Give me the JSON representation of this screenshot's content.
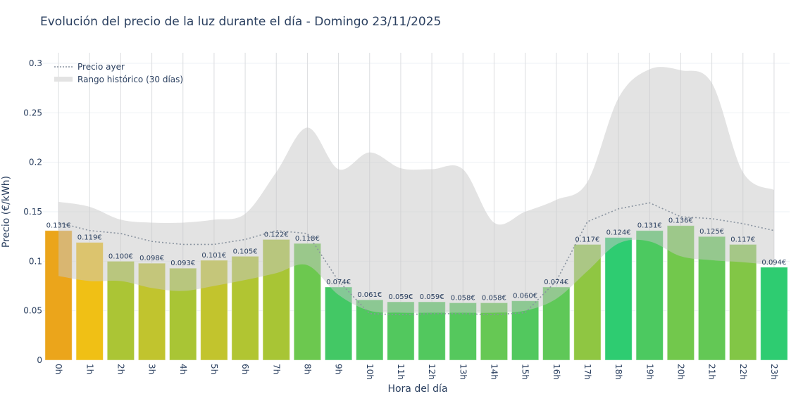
{
  "chart_data": {
    "type": "bar",
    "title": "Evolución del precio de la luz durante el día - Domingo 23/11/2025",
    "xlabel": "Hora del día",
    "ylabel": "Precio (€/kWh)",
    "ylim": [
      0,
      0.3
    ],
    "yticks": [
      "0",
      "0.05",
      "0.1",
      "0.15",
      "0.2",
      "0.25",
      "0.3"
    ],
    "grid": true,
    "legend_position": "top-left",
    "categories": [
      "0h",
      "1h",
      "2h",
      "3h",
      "4h",
      "5h",
      "6h",
      "7h",
      "8h",
      "9h",
      "10h",
      "11h",
      "12h",
      "13h",
      "14h",
      "15h",
      "16h",
      "17h",
      "18h",
      "19h",
      "20h",
      "21h",
      "22h",
      "23h"
    ],
    "values": [
      0.131,
      0.119,
      0.1,
      0.098,
      0.093,
      0.101,
      0.105,
      0.122,
      0.118,
      0.074,
      0.061,
      0.059,
      0.059,
      0.058,
      0.058,
      0.06,
      0.074,
      0.117,
      0.124,
      0.131,
      0.136,
      0.125,
      0.117,
      0.094
    ],
    "data_labels": [
      "0.131€",
      "0.119€",
      "0.100€",
      "0.098€",
      "0.093€",
      "0.101€",
      "0.105€",
      "0.122€",
      "0.118€",
      "0.074€",
      "0.061€",
      "0.059€",
      "0.059€",
      "0.058€",
      "0.058€",
      "0.060€",
      "0.074€",
      "0.117€",
      "0.124€",
      "0.131€",
      "0.136€",
      "0.125€",
      "0.117€",
      "0.094€"
    ],
    "bar_colors": [
      "#eba51b",
      "#f0c015",
      "#abc535",
      "#c1c42e",
      "#a9c535",
      "#c2c42d",
      "#b1c532",
      "#a8c535",
      "#6cc84f",
      "#43c865",
      "#50c85e",
      "#52c85e",
      "#52c85e",
      "#55c85d",
      "#66c854",
      "#52c85e",
      "#5fc858",
      "#8fc642",
      "#2ecc71",
      "#4cc960",
      "#72c84c",
      "#63c855",
      "#82c646",
      "#2ecc71"
    ],
    "series": [
      {
        "name": "Precio ayer",
        "type": "line",
        "style": "dotted",
        "color": "#8a94a0",
        "values": [
          0.139,
          0.131,
          0.128,
          0.12,
          0.117,
          0.117,
          0.122,
          0.131,
          0.128,
          0.08,
          0.047,
          0.046,
          0.047,
          0.047,
          0.046,
          0.048,
          0.08,
          0.14,
          0.153,
          0.159,
          0.145,
          0.143,
          0.138,
          0.131
        ]
      },
      {
        "name": "Rango histórico (30 días)",
        "type": "area-range",
        "color": "#d3d3d3",
        "upper": [
          0.16,
          0.155,
          0.142,
          0.139,
          0.139,
          0.142,
          0.148,
          0.19,
          0.235,
          0.193,
          0.21,
          0.194,
          0.193,
          0.193,
          0.139,
          0.15,
          0.162,
          0.18,
          0.265,
          0.294,
          0.293,
          0.28,
          0.19,
          0.172
        ],
        "lower": [
          0.085,
          0.08,
          0.08,
          0.073,
          0.07,
          0.075,
          0.081,
          0.088,
          0.096,
          0.066,
          0.05,
          0.048,
          0.048,
          0.048,
          0.048,
          0.05,
          0.062,
          0.09,
          0.118,
          0.12,
          0.105,
          0.101,
          0.099,
          0.096
        ]
      }
    ]
  }
}
